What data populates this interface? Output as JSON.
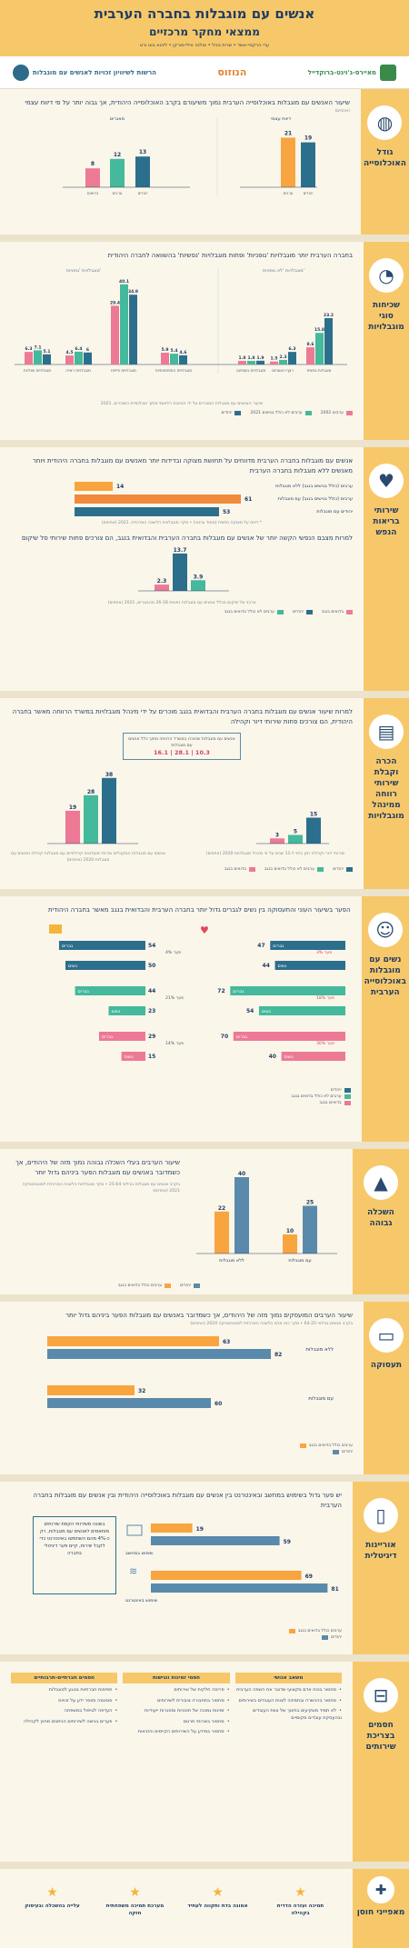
{
  "header": {
    "title": "אנשים עם מוגבלות בחברה הערבית",
    "subtitle": "ממצאי מחקר מרכזיים",
    "authors": "עדי הרקביי-אשד • שרית נוהל • אולנה אילי-סורקן • ליהוא בוט ורט"
  },
  "logos": {
    "gov": "הרשות לשיוויון זכויות לאנשים עם מוגבלות",
    "hatzav": "הנוזוס",
    "brookdale": "מאיירס-ג'וינט-ברוקדייל"
  },
  "sections": {
    "population": {
      "label": "גודל האוכלוסייה",
      "icon": "globe-icon",
      "lead": "שיעור האנשים עם מוגבלות באוכלוסייה הערבית נמוך משיעורם בקרב האוכלוסייה היהודית, אך גבוה יותר על פי דיווח עצמי",
      "unit": "(אחוזים)",
      "group_left": "דיווח עצמי",
      "group_left_note": "*על 20 ומעלה, 2017 ושנות לאו",
      "group_right": "מאגרים",
      "note": "",
      "legend": [
        "מגה",
        "ערבים כלל בגישים 2017",
        "יהודים"
      ]
    },
    "disability_types": {
      "label": "שכיחות סוגי מוגבלויות",
      "icon": "pie-icon",
      "lead": "בחברה הערבית יותר מוגבלויות 'גופניות' ופחות מוגבלויות 'נפשיות' בהשוואה לחברה היהודית",
      "group_left": "מוגבלויות 'גופניות'",
      "group_right": "מוגבלויות 'לא גופניות'",
      "note": "שיעור האנשים עם מוגבלות המוכרים על ידי הביטוח הלאומי מתוך אוכלוסיית המוכרים, 2021",
      "legend": [
        "ערבים 2002",
        "ערבים לא כולל בגישים 2021",
        "יהודים"
      ]
    },
    "health": {
      "label": "שירותי בריאות הנפש",
      "icon": "heart-hands-icon",
      "lead": "אנשים עם מוגבלות בחברה הערבית מדווחים על תחושת מצוקה ובדידות יותר מאנשים עם מוגבלות בחברה היהודית ויותר מאנשים ללא מוגבלות בחברה הערבית",
      "rows": [
        {
          "label": "ערבים (כולל בגישים בנגב) ללא מוגבלות",
          "value": 14
        },
        {
          "label": "ערבים (כולל בגישים בנגב) עם מוגבלות",
          "value": 61
        },
        {
          "label": "יהודים עם מוגבלות",
          "value": 53
        }
      ],
      "rows_note": "* דיווח על מצוקה נפשית (מאוד ובינוני) • סקר מוגבלויות הלשכה המרכזית, 2021 (אחוזים)",
      "lead2": "למרות מצבם הנפשי הקשה יותר של אנשים עם מוגבלות בחברה הערבית והבדואית בנגב, הם צורכים פחות שירותי סל שיקום",
      "values2": [
        13.7,
        2.3,
        3.9
      ],
      "note2": "צרכני סל שיקום מכלל אנשים עם מוגבלות נפשית 26-18 מהבוגרים, 2021 (אחוזים)",
      "legend": [
        "בדואים בנגב",
        "יהודים",
        "ערבים לא כולל בדואים בנגב"
      ]
    },
    "recognition": {
      "label": "הכרה וקבלת שירותי רווחה ממינהל מוגבלויות",
      "icon": "clipboard-icon",
      "lead": "למרות שיעור אנשים עם מוגבלות בחברה הערבית והבדואית בנגב מוכרים על ידי מינהל מוגבלויות במשרד הרווחה מאשר בחברה היהודית, הם צורכים פחות שירותי דיור וקהילה",
      "callout_title": "אנשים עם מוגבלות שהוכרו במשרד הרווחה מתוך כלל אנשים עם מוגבלות",
      "callout_values": "10.3 | 28.1 | 16.1",
      "left_vals": [
        19,
        28,
        38
      ],
      "right_vals": [
        3,
        5,
        15
      ],
      "left_note": "אנשים עם מוגבלות המקבלים שירותי מועדונים קהילתיים עם מוגבלות קהילה ואנשים עם מוגבלות 2020 (אחוזים)",
      "right_note": "שירותי דיור וקהילה חוץ ביתי ל-11 שנים על פי מינהל מוגבלויות 2020 (אחוזים)",
      "legend": [
        "יהודים",
        "ערבים לא כולל בדואים בנגב",
        "בדואים בנגב"
      ]
    },
    "women": {
      "label": "נשים עם מוגבלות באוכלוסייה הערבית",
      "icon": "woman-icon",
      "lead": "הפער בשיעור העוני והתעסוקה בין נשים לגברים גדול יותר בחברה הערבית והבדואית בנגב מאשר בחברה היהודית",
      "employment_rows": [
        {
          "label": "גברים",
          "value": 54,
          "color": "dark"
        },
        {
          "label": "נשים",
          "value": 50,
          "color": "dark"
        },
        {
          "label": "גברים",
          "value": 44,
          "color": "teal"
        },
        {
          "label": "נשים",
          "value": 23,
          "color": "teal"
        },
        {
          "label": "גברים",
          "value": 29,
          "color": "pink"
        },
        {
          "label": "נשים",
          "value": 15,
          "color": "pink"
        }
      ],
      "poverty_rows": [
        {
          "label": "גברים",
          "value": 47,
          "color": "dark"
        },
        {
          "label": "נשים",
          "value": 44,
          "color": "dark"
        },
        {
          "label": "גברים",
          "value": 72,
          "color": "teal"
        },
        {
          "label": "נשים",
          "value": 54,
          "color": "teal"
        },
        {
          "label": "גברים",
          "value": 70,
          "color": "pink"
        },
        {
          "label": "נשים",
          "value": 40,
          "color": "pink"
        }
      ],
      "gap_labels_left": [
        "פער 4%",
        "פער 21%",
        "פער 14%"
      ],
      "gap_labels_right": [
        "פער 3%",
        "פער 18%",
        "פער 30%"
      ],
      "legend": [
        "יהודים",
        "ערבים לא כולל בדואים בנגב",
        "בדואים בנגב"
      ]
    },
    "education": {
      "label": "השכלה גבוהה",
      "icon": "graduation-cap-icon",
      "lead": "שיעור הערבים בעלי השכלה גבוהה נמוך מזה של היהודים, אך כשמדובר באנשים עם מוגבלות הפער ביניהם גדול יותר",
      "note": "בקרב אנשים עם מוגבלות בגילאי 25-64 • סקר מוגבלויות הלשכה המרכזית לסטטיסטיקה 2021 (אחוזים)",
      "groups": [
        {
          "label": "ללא מוגבלות",
          "arab": 22,
          "jew": 40
        },
        {
          "label": "עם מוגבלות",
          "arab": 10,
          "jew": 25
        }
      ],
      "legend": [
        "יהודים",
        "ערבים כולל בדואים בנגב"
      ]
    },
    "employment": {
      "label": "תעסוקה",
      "icon": "briefcase-icon",
      "lead": "שיעור הערבים המועסקים נמוך מזה של היהודים, אך כשמדובר באנשים עם מוגבלות הפער ביניהם גדול יותר",
      "note": "בקרב אנשים בגילאי 64-25 • סקר כוח אדם הלשכה המרכזית לסטטיסטיקה 2020 (אחוזים)",
      "groups": [
        {
          "label": "ללא מוגבלות",
          "arab": 63,
          "jew": 82
        },
        {
          "label": "עם מוגבלות",
          "arab": 32,
          "jew": 60
        }
      ],
      "legend": [
        "ערבים כולל בדואים בנגב",
        "יהודים"
      ]
    },
    "digital": {
      "label": "אוריינות דיגיטלית",
      "icon": "smartphone-icon",
      "lead": "יש פער גדול בשימוש במחשב ובאינטרנט בין אנשים עם מוגבלות באוכלוסייה היהודית ובין אנשים עם מוגבלות בחברה הערבית",
      "box": "בשונה משירותי הקמת שירותים מותאמים לאנשים עם מוגבלות, רק כ-4% מהם השתמשו באינטרנט כדי לקבל שירות, קיים פער דיגיטלי בחברה",
      "groups": [
        {
          "label": "שימוש במחשב",
          "arab": 19,
          "jew": 59
        },
        {
          "label": "שימוש באינטרנט",
          "arab": 69,
          "jew": 81
        }
      ],
      "legend": [
        "ערבים כולל בדואים בנגב",
        "יהודים"
      ]
    },
    "barriers": {
      "label": "חסמים בצריכת שירותים",
      "icon": "road-barrier-icon",
      "col1_title": "משאב אנושי",
      "col1": [
        "מחסור בכוח אדם מקצועי שדובר את השפה הערבית",
        "מחסור בהכשרה ובתמיכה לצוות העובדים בשירותים",
        "לא תמיד משקיעים בחינוך של צוות העובדים ובהעסקת עובדים מקומיים"
      ],
      "col2_title": "חסמי זמינות ונגישות",
      "col2": [
        "פריסה חלקית של שירותים",
        "מחסור בתחבורה ציבורית לשירותים",
        "זמינות נמוכה של תוכניות ומסגרות ייעודיות",
        "מחסור בשרותי תרגום",
        "מחסור במידע על השירותים הקיימים והזכאות"
      ],
      "col3_title": "חסמים חברתיים-תרבותיים",
      "col3": [
        "תפיסות חברתיות בנוגע למוגבלות",
        "סטיגמה וחוסר ידע על זכויות",
        "העדפה לטיפול במשפחה",
        "פערים בגישה לשירותים הניתנים מחוץ לקהילה"
      ]
    },
    "strengths": {
      "label": "מאפייני חוסן",
      "icon": "puzzle-icon",
      "items": [
        "תמיכה ועזרה הדדית בקהילה",
        "אמונה בדת ותקווה לעתיד",
        "מערכת תמיכה משפחתית חזקה",
        "עלייה בהשכלה ובעיסוק"
      ]
    }
  },
  "chart_data": [
    {
      "type": "bar",
      "title": "",
      "categories": [
        "דיווח עצמי - ערבים",
        "דיווח עצמי - יהודים",
        "מאגרים - בדואים",
        "מאגרים - ערבים",
        "מאגרים - יהודים"
      ],
      "series": [
        {
          "name": "",
          "values": [
            21,
            19,
            8,
            12,
            13
          ]
        }
      ]
    },
    {
      "type": "bar",
      "title": "",
      "categories": [
        "מוגבלויות שכליות",
        "מוגבלויות ראייה",
        "מוגבלויות פיזיות",
        "מוגבלויות התפתחותיות",
        "מוגבלויות בשמיעה",
        "רצף האוטיזם",
        "מוגבלות נפשית"
      ],
      "series": [
        {
          "name": "ערבים 2002",
          "values": [
            6.3,
            4.5,
            29.4,
            5.9,
            1.8,
            1.5,
            8.6
          ]
        },
        {
          "name": "ערבים לא כולל בגישים 2021",
          "values": [
            7.1,
            6.4,
            40.1,
            5.4,
            1.8,
            2.3,
            15.8
          ]
        },
        {
          "name": "יהודים",
          "values": [
            5.1,
            6.0,
            34.9,
            4.6,
            1.9,
            6.3,
            23.2
          ]
        }
      ]
    }
  ]
}
